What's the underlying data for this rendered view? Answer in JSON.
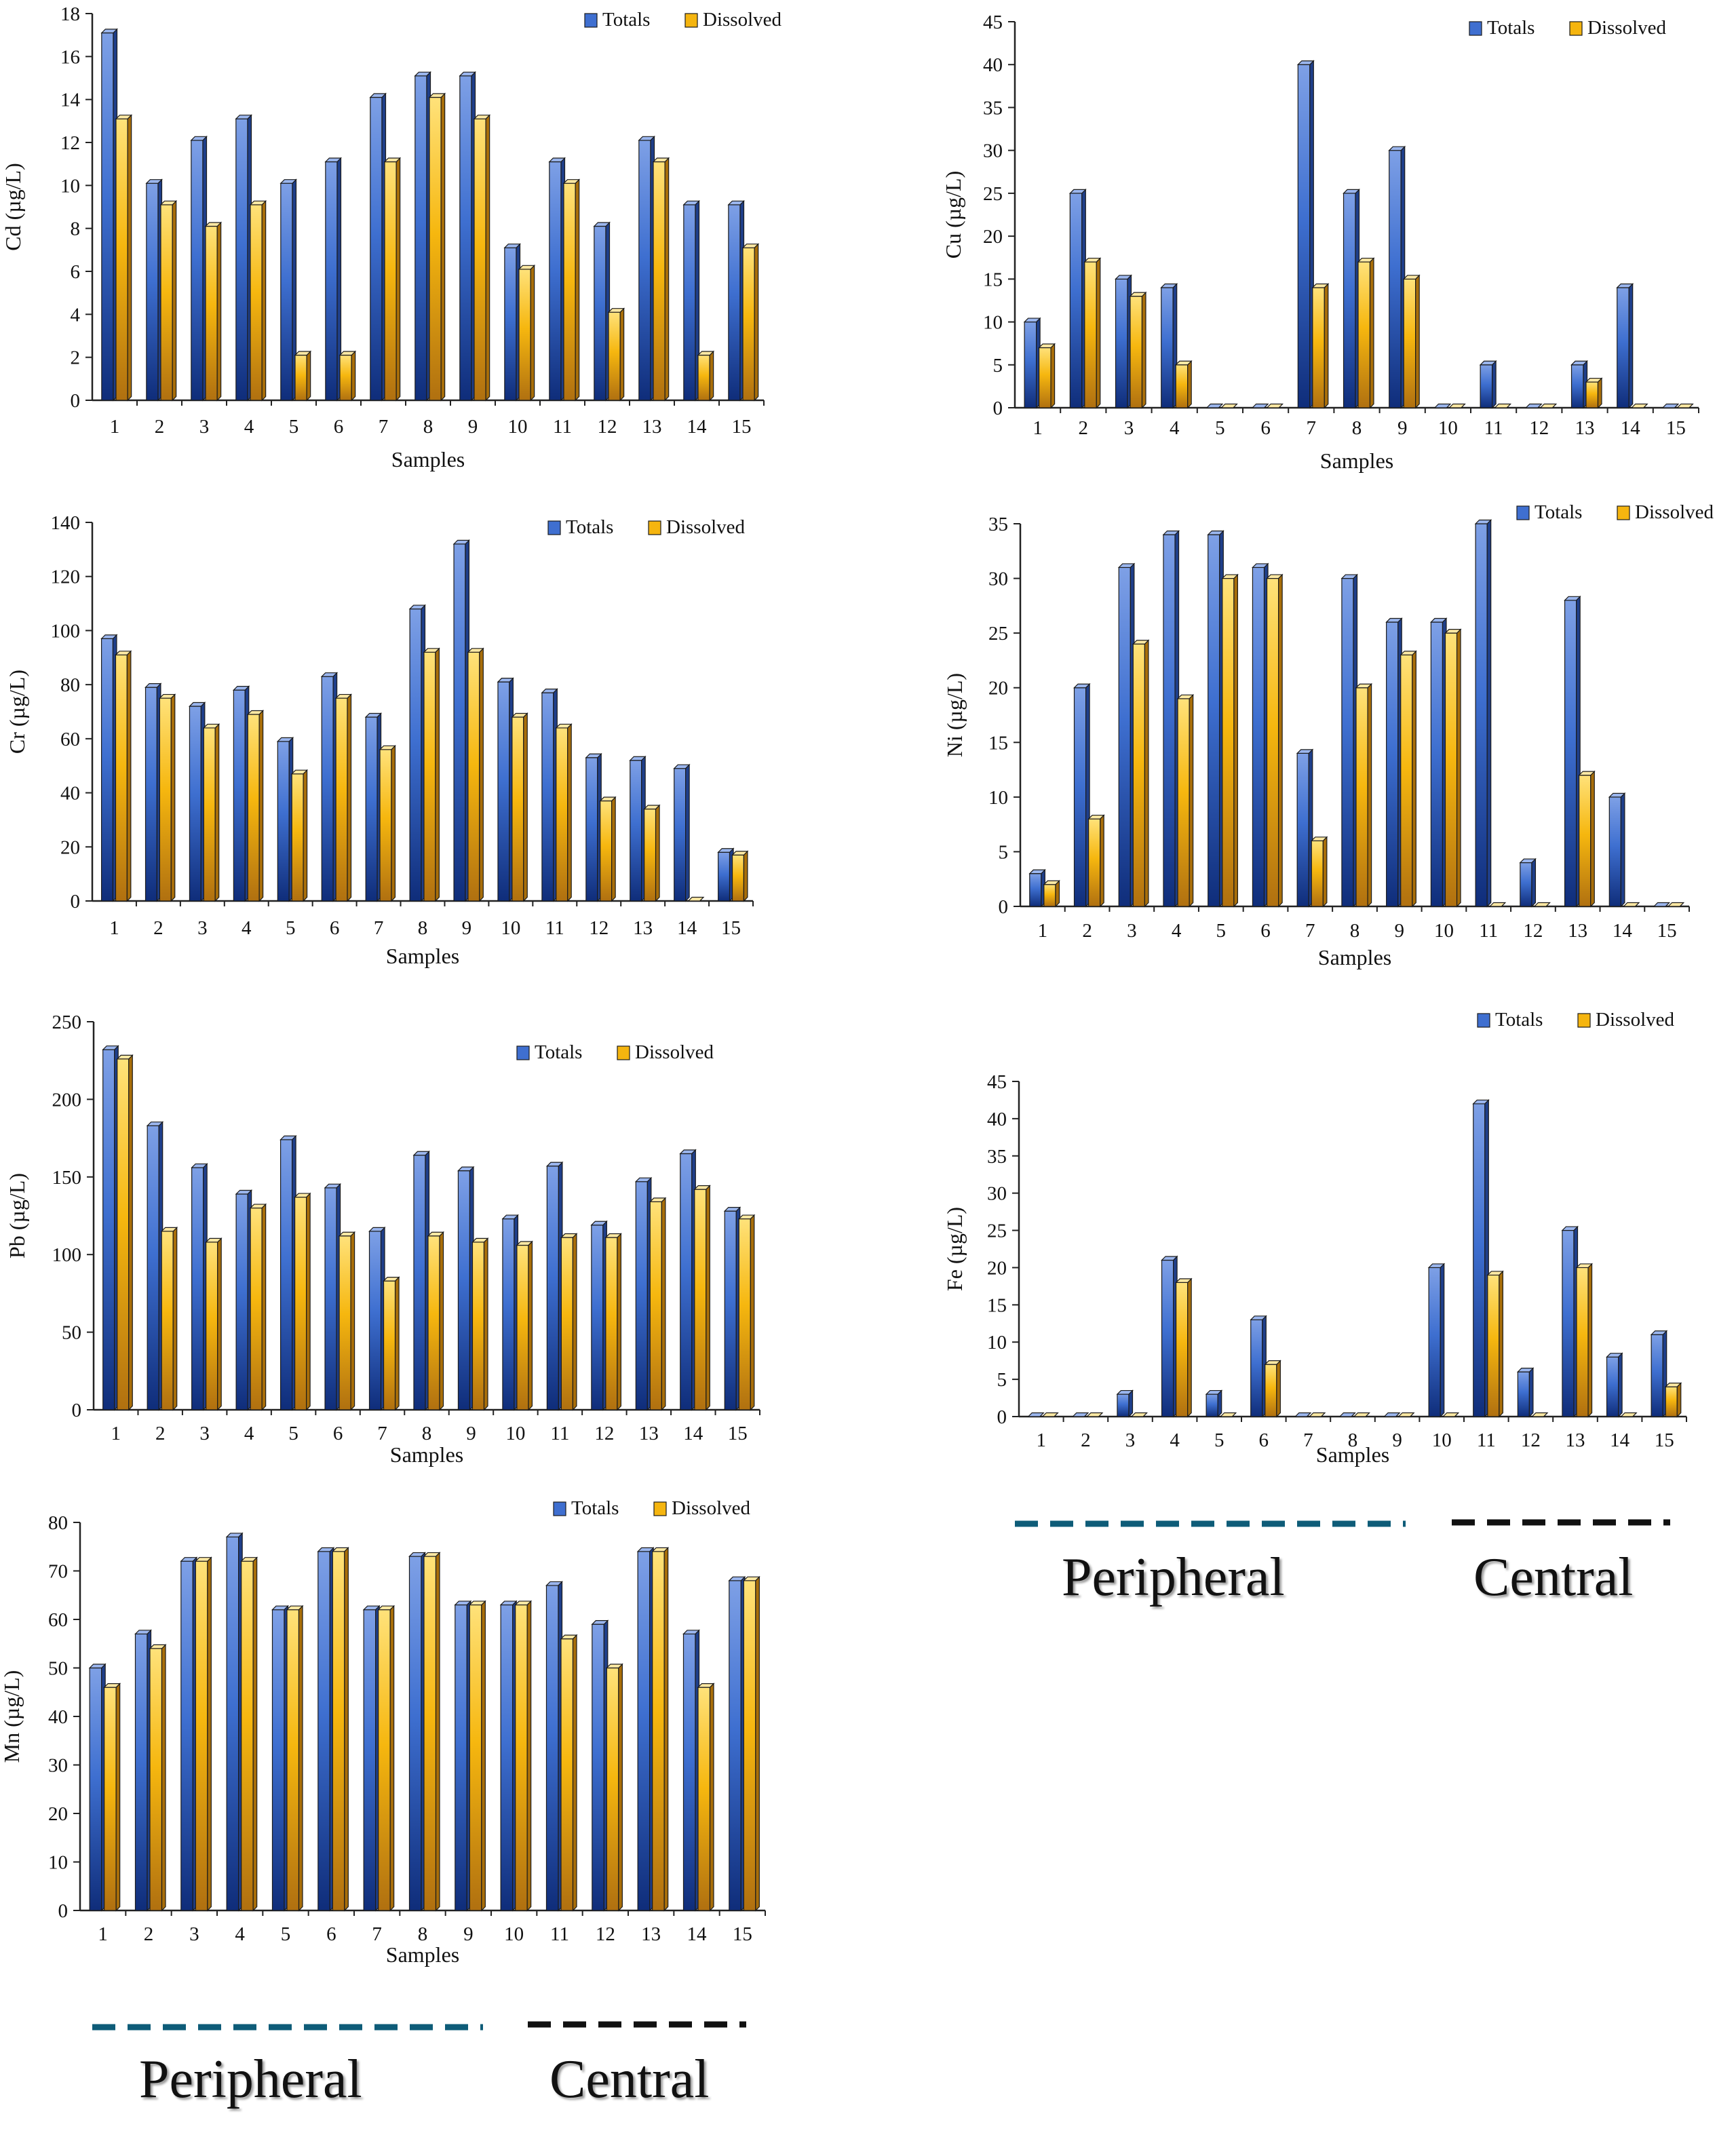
{
  "figure": {
    "legend_labels": {
      "totals": "Totals",
      "dissolved": "Dissolved"
    },
    "colors": {
      "totals": "#3f6fd0",
      "dissolved": "#f5b50f",
      "peripheral_line": "#0e5c78",
      "central_line": "#111111",
      "axis": "#222222"
    },
    "zones": [
      {
        "id": "right",
        "peripheral": "Peripheral",
        "central": "Central"
      },
      {
        "id": "bottom",
        "peripheral": "Peripheral",
        "central": "Central"
      }
    ]
  },
  "chart_data": [
    {
      "type": "bar",
      "element": "Cd",
      "ylabel": "Cd  (µg/L)",
      "xlabel": "Samples",
      "categories": [
        "1",
        "2",
        "3",
        "4",
        "5",
        "6",
        "7",
        "8",
        "9",
        "10",
        "11",
        "12",
        "13",
        "14",
        "15"
      ],
      "ylim": [
        0,
        18
      ],
      "ytick_step": 2,
      "yticks": [
        "0",
        "2",
        "4",
        "6",
        "8",
        "10",
        "12",
        "14",
        "16",
        "18"
      ],
      "legend": "top-right",
      "series": [
        {
          "name": "Totals",
          "values": [
            17.1,
            10.1,
            12.1,
            13.1,
            10.1,
            11.1,
            14.1,
            15.1,
            15.1,
            7.1,
            11.1,
            8.1,
            12.1,
            9.1,
            9.1
          ]
        },
        {
          "name": "Dissolved",
          "values": [
            13.1,
            9.1,
            8.1,
            9.1,
            2.1,
            2.1,
            11.1,
            14.1,
            13.1,
            6.1,
            10.1,
            4.1,
            11.1,
            2.1,
            7.1
          ]
        }
      ]
    },
    {
      "type": "bar",
      "element": "Cu",
      "ylabel": "Cu (µg/L)",
      "xlabel": "Samples",
      "categories": [
        "1",
        "2",
        "3",
        "4",
        "5",
        "6",
        "7",
        "8",
        "9",
        "10",
        "11",
        "12",
        "13",
        "14",
        "15"
      ],
      "ylim": [
        0,
        45
      ],
      "ytick_step": 5,
      "yticks": [
        "0",
        "5",
        "10",
        "15",
        "20",
        "25",
        "30",
        "35",
        "40",
        "45"
      ],
      "legend": "top-right",
      "series": [
        {
          "name": "Totals",
          "values": [
            10,
            25,
            15,
            14,
            0,
            0,
            40,
            25,
            30,
            0,
            5,
            0,
            5,
            14,
            0
          ]
        },
        {
          "name": "Dissolved",
          "values": [
            7,
            17,
            13,
            5,
            0,
            0,
            14,
            17,
            15,
            0,
            0,
            0,
            3,
            0,
            0
          ]
        }
      ]
    },
    {
      "type": "bar",
      "element": "Cr",
      "ylabel": "Cr (µg/L)",
      "xlabel": "Samples",
      "categories": [
        "1",
        "2",
        "3",
        "4",
        "5",
        "6",
        "7",
        "8",
        "9",
        "10",
        "11",
        "12",
        "13",
        "14",
        "15"
      ],
      "ylim": [
        0,
        140
      ],
      "ytick_step": 20,
      "yticks": [
        "0",
        "20",
        "40",
        "60",
        "80",
        "100",
        "120",
        "140"
      ],
      "legend": "top-right",
      "series": [
        {
          "name": "Totals",
          "values": [
            97,
            79,
            72,
            78,
            59,
            83,
            68,
            108,
            132,
            81,
            77,
            53,
            52,
            49,
            18
          ]
        },
        {
          "name": "Dissolved",
          "values": [
            91,
            75,
            64,
            69,
            47,
            75,
            56,
            92,
            92,
            68,
            64,
            37,
            34,
            0,
            17
          ]
        }
      ]
    },
    {
      "type": "bar",
      "element": "Ni",
      "ylabel": "Ni (µg/L)",
      "xlabel": "Samples",
      "categories": [
        "1",
        "2",
        "3",
        "4",
        "5",
        "6",
        "7",
        "8",
        "9",
        "10",
        "11",
        "12",
        "13",
        "14",
        "15"
      ],
      "ylim": [
        0,
        35
      ],
      "ytick_step": 5,
      "yticks": [
        "0",
        "5",
        "10",
        "15",
        "20",
        "25",
        "30",
        "35"
      ],
      "legend": "top-right",
      "series": [
        {
          "name": "Totals",
          "values": [
            3,
            20,
            31,
            34,
            34,
            31,
            14,
            30,
            26,
            26,
            35,
            4,
            28,
            10,
            0
          ]
        },
        {
          "name": "Dissolved",
          "values": [
            2,
            8,
            24,
            19,
            30,
            30,
            6,
            20,
            23,
            25,
            0,
            0,
            12,
            0,
            0
          ]
        }
      ]
    },
    {
      "type": "bar",
      "element": "Pb",
      "ylabel": "Pb (µg/L)",
      "xlabel": "Samples",
      "categories": [
        "1",
        "2",
        "3",
        "4",
        "5",
        "6",
        "7",
        "8",
        "9",
        "10",
        "11",
        "12",
        "13",
        "14",
        "15"
      ],
      "ylim": [
        0,
        250
      ],
      "ytick_step": 50,
      "yticks": [
        "0",
        "50",
        "100",
        "150",
        "200",
        "250"
      ],
      "legend": "top-right",
      "series": [
        {
          "name": "Totals",
          "values": [
            232,
            183,
            156,
            139,
            174,
            143,
            115,
            164,
            154,
            123,
            157,
            119,
            147,
            165,
            128
          ]
        },
        {
          "name": "Dissolved",
          "values": [
            226,
            115,
            108,
            130,
            137,
            112,
            83,
            112,
            108,
            106,
            111,
            111,
            134,
            142,
            123
          ]
        }
      ]
    },
    {
      "type": "bar",
      "element": "Fe",
      "ylabel": "Fe (µg/L)",
      "xlabel": "Samples",
      "categories": [
        "1",
        "2",
        "3",
        "4",
        "5",
        "6",
        "7",
        "8",
        "9",
        "10",
        "11",
        "12",
        "13",
        "14",
        "15"
      ],
      "ylim": [
        0,
        45
      ],
      "ytick_step": 5,
      "yticks": [
        "0",
        "5",
        "10",
        "15",
        "20",
        "25",
        "30",
        "35",
        "40",
        "45"
      ],
      "legend": "top-right",
      "series": [
        {
          "name": "Totals",
          "values": [
            0,
            0,
            3,
            21,
            3,
            13,
            0,
            0,
            0,
            20,
            42,
            6,
            25,
            8,
            11
          ]
        },
        {
          "name": "Dissolved",
          "values": [
            0,
            0,
            0,
            18,
            0,
            7,
            0,
            0,
            0,
            0,
            19,
            0,
            20,
            0,
            4
          ]
        }
      ]
    },
    {
      "type": "bar",
      "element": "Mn",
      "ylabel": "Mn (µg/L)",
      "xlabel": "Samples",
      "categories": [
        "1",
        "2",
        "3",
        "4",
        "5",
        "6",
        "7",
        "8",
        "9",
        "10",
        "11",
        "12",
        "13",
        "14",
        "15"
      ],
      "ylim": [
        0,
        80
      ],
      "ytick_step": 10,
      "yticks": [
        "0",
        "10",
        "20",
        "30",
        "40",
        "50",
        "60",
        "70",
        "80"
      ],
      "legend": "top-right",
      "series": [
        {
          "name": "Totals",
          "values": [
            50,
            57,
            72,
            77,
            62,
            74,
            62,
            73,
            63,
            63,
            67,
            59,
            74,
            57,
            68
          ]
        },
        {
          "name": "Dissolved",
          "values": [
            46,
            54,
            72,
            72,
            62,
            74,
            62,
            73,
            63,
            63,
            56,
            50,
            74,
            46,
            68
          ]
        }
      ]
    }
  ]
}
